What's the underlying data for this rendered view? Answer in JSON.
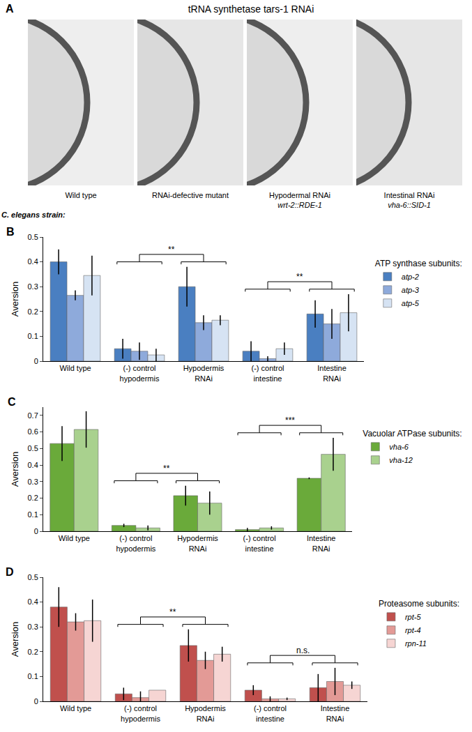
{
  "panel_a": {
    "label": "A",
    "title": "tRNA synthetase tars-1 RNAi",
    "strain_heading": "C. elegans strain:",
    "strains": [
      {
        "name": "Wild type"
      },
      {
        "name": "RNAi-defective mutant"
      },
      {
        "name": "Hypodermal RNAi",
        "detail": "wrt-2::RDE-1"
      },
      {
        "name": "Intestinal RNAi",
        "detail": "vha-6::SID-1"
      }
    ]
  },
  "chart_data": [
    {
      "panel": "B",
      "type": "bar",
      "y_label": "Aversion",
      "legend_title": "ATP synthase subunits:",
      "categories": [
        "Wild type",
        "(-) control\nhypodermis",
        "Hypodermis\nRNAi",
        "(-) control\nintestine",
        "Intestine\nRNAi"
      ],
      "ylim": [
        0,
        0.5
      ],
      "yticks": [
        0,
        0.1,
        0.2,
        0.3,
        0.4,
        0.5
      ],
      "grid": false,
      "series": [
        {
          "name": "atp-2",
          "color": "#4a7fc1",
          "values": [
            0.4,
            0.05,
            0.3,
            0.04,
            0.19
          ],
          "errors": [
            0.05,
            0.04,
            0.08,
            0.04,
            0.055
          ]
        },
        {
          "name": "atp-3",
          "color": "#8eaadb",
          "values": [
            0.265,
            0.04,
            0.155,
            0.01,
            0.15
          ],
          "errors": [
            0.02,
            0.035,
            0.03,
            0.01,
            0.06
          ]
        },
        {
          "name": "atp-5",
          "color": "#d6e3f3",
          "values": [
            0.345,
            0.025,
            0.165,
            0.05,
            0.195
          ],
          "errors": [
            0.08,
            0.025,
            0.02,
            0.025,
            0.075
          ]
        }
      ],
      "significance": [
        {
          "between": [
            "(-) control\nhypodermis",
            "Hypodermis\nRNAi"
          ],
          "label": "**"
        },
        {
          "between": [
            "(-) control\nintestine",
            "Intestine\nRNAi"
          ],
          "label": "**"
        }
      ]
    },
    {
      "panel": "C",
      "type": "bar",
      "y_label": "Aversion",
      "legend_title": "Vacuolar ATPase subunits:",
      "categories": [
        "Wild type",
        "(-) control\nhypodermis",
        "Hypodermis\nRNAi",
        "(-) control\nintestine",
        "Intestine\nRNAi"
      ],
      "ylim": [
        0,
        0.75
      ],
      "yticks": [
        0,
        0.1,
        0.2,
        0.3,
        0.4,
        0.5,
        0.6,
        0.7
      ],
      "grid": false,
      "series": [
        {
          "name": "vha-6",
          "color": "#6aaa3a",
          "values": [
            0.53,
            0.035,
            0.215,
            0.01,
            0.32
          ],
          "errors": [
            0.105,
            0.01,
            0.06,
            0.01,
            0.005
          ]
        },
        {
          "name": "vha-12",
          "color": "#a9d18e",
          "values": [
            0.615,
            0.02,
            0.17,
            0.02,
            0.465
          ],
          "errors": [
            0.11,
            0.015,
            0.07,
            0.01,
            0.1
          ]
        }
      ],
      "significance": [
        {
          "between": [
            "(-) control\nhypodermis",
            "Hypodermis\nRNAi"
          ],
          "label": "**"
        },
        {
          "between": [
            "(-) control\nintestine",
            "Intestine\nRNAi"
          ],
          "label": "***"
        }
      ]
    },
    {
      "panel": "D",
      "type": "bar",
      "y_label": "Aversion",
      "legend_title": "Proteasome subunits:",
      "categories": [
        "Wild type",
        "(-) control\nhypodermis",
        "Hypodermis\nRNAi",
        "(-) control\nintestine",
        "Intestine\nRNAi"
      ],
      "ylim": [
        0,
        0.5
      ],
      "yticks": [
        0,
        0.1,
        0.2,
        0.3,
        0.4,
        0.5
      ],
      "grid": false,
      "series": [
        {
          "name": "rpt-5",
          "color": "#c0504d",
          "values": [
            0.38,
            0.03,
            0.225,
            0.045,
            0.055
          ],
          "errors": [
            0.08,
            0.025,
            0.065,
            0.02,
            0.055
          ]
        },
        {
          "name": "rpt-4",
          "color": "#e39a96",
          "values": [
            0.32,
            0.015,
            0.165,
            0.01,
            0.08
          ],
          "errors": [
            0.035,
            0.025,
            0.035,
            0.01,
            0.055
          ]
        },
        {
          "name": "rpn-11",
          "color": "#f6d5d3",
          "values": [
            0.325,
            0.045,
            0.19,
            0.01,
            0.065
          ],
          "errors": [
            0.085,
            0,
            0.03,
            0.005,
            0.015
          ]
        }
      ],
      "significance": [
        {
          "between": [
            "(-) control\nhypodermis",
            "Hypodermis\nRNAi"
          ],
          "label": "**"
        },
        {
          "between": [
            "(-) control\nintestine",
            "Intestine\nRNAi"
          ],
          "label": "n.s."
        }
      ]
    }
  ]
}
